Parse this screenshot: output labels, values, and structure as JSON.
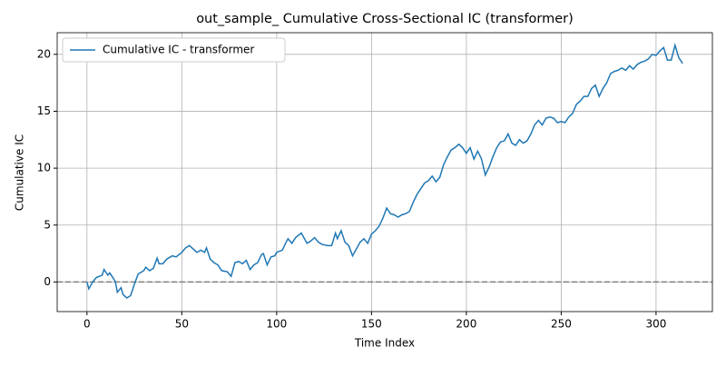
{
  "chart_data": {
    "type": "line",
    "title": "out_sample_ Cumulative Cross-Sectional IC (transformer)",
    "x_label": "Time Index",
    "y_label": "Cumulative IC",
    "x": [
      0,
      1,
      3,
      5,
      8,
      9,
      11,
      12,
      14,
      15,
      16,
      18,
      19,
      21,
      23,
      25,
      27,
      30,
      31,
      33,
      35,
      37,
      38,
      40,
      42,
      45,
      47,
      50,
      52,
      54,
      56,
      58,
      60,
      62,
      63,
      65,
      67,
      69,
      71,
      74,
      76,
      78,
      80,
      82,
      84,
      86,
      88,
      90,
      92,
      93,
      95,
      97,
      99,
      100,
      103,
      105,
      106,
      108,
      110,
      113,
      116,
      118,
      120,
      122,
      124,
      127,
      129,
      131,
      132,
      134,
      136,
      138,
      140,
      142,
      144,
      146,
      148,
      150,
      152,
      154,
      156,
      158,
      160,
      162,
      164,
      166,
      168,
      170,
      172,
      174,
      176,
      178,
      180,
      182,
      184,
      186,
      188,
      190,
      192,
      194,
      196,
      198,
      200,
      202,
      204,
      206,
      208,
      210,
      212,
      214,
      216,
      218,
      220,
      222,
      224,
      226,
      228,
      230,
      232,
      234,
      236,
      238,
      240,
      242,
      244,
      246,
      248,
      250,
      252,
      254,
      256,
      258,
      260,
      262,
      264,
      266,
      268,
      270,
      272,
      274,
      276,
      278,
      280,
      282,
      284,
      286,
      288,
      290,
      292,
      294,
      296,
      298,
      300,
      302,
      304,
      306,
      308,
      310,
      312,
      314
    ],
    "series": [
      {
        "name": "Cumulative IC - transformer",
        "color": "#1f77b4",
        "values": [
          0,
          -0.6,
          0,
          0.4,
          0.6,
          1.1,
          0.6,
          0.8,
          0.3,
          0,
          -0.9,
          -0.5,
          -1.1,
          -1.4,
          -1.2,
          -0.2,
          0.7,
          1.0,
          1.3,
          1.0,
          1.2,
          2.1,
          1.6,
          1.6,
          2.0,
          2.3,
          2.2,
          2.6,
          3.0,
          3.2,
          2.9,
          2.6,
          2.8,
          2.6,
          3.0,
          2.0,
          1.7,
          1.5,
          1.0,
          0.9,
          0.5,
          1.7,
          1.8,
          1.6,
          1.9,
          1.1,
          1.5,
          1.7,
          2.4,
          2.5,
          1.5,
          2.2,
          2.3,
          2.6,
          2.8,
          3.5,
          3.8,
          3.4,
          3.9,
          4.3,
          3.4,
          3.6,
          3.9,
          3.5,
          3.3,
          3.2,
          3.2,
          4.3,
          3.8,
          4.5,
          3.5,
          3.2,
          2.3,
          2.9,
          3.5,
          3.8,
          3.4,
          4.2,
          4.5,
          4.9,
          5.6,
          6.5,
          6.0,
          5.9,
          5.7,
          5.9,
          6.0,
          6.2,
          7.0,
          7.7,
          8.2,
          8.7,
          8.9,
          9.3,
          8.8,
          9.2,
          10.3,
          11.0,
          11.6,
          11.8,
          12.1,
          11.8,
          11.3,
          11.8,
          10.8,
          11.5,
          10.8,
          9.4,
          10.1,
          11.0,
          11.8,
          12.3,
          12.4,
          13.0,
          12.2,
          12.0,
          12.5,
          12.2,
          12.4,
          13.0,
          13.8,
          14.2,
          13.8,
          14.4,
          14.5,
          14.4,
          14.0,
          14.1,
          14.0,
          14.5,
          14.8,
          15.6,
          15.9,
          16.3,
          16.3,
          17.0,
          17.3,
          16.3,
          17.0,
          17.5,
          18.3,
          18.5,
          18.6,
          18.8,
          18.6,
          19.0,
          18.7,
          19.1,
          19.3,
          19.4,
          19.6,
          20.0,
          19.9,
          20.3,
          20.6,
          19.5,
          19.5,
          20.8,
          19.7,
          19.2
        ]
      }
    ],
    "hline": 0,
    "hline_color": "#808080",
    "xlim": [
      -15.7,
      329.7
    ],
    "xticks": [
      0,
      50,
      100,
      150,
      200,
      250,
      300
    ],
    "ylim": [
      -2.6,
      21.9
    ],
    "yticks": [
      0,
      5,
      10,
      15,
      20
    ],
    "grid": true,
    "legend": "upper left"
  }
}
